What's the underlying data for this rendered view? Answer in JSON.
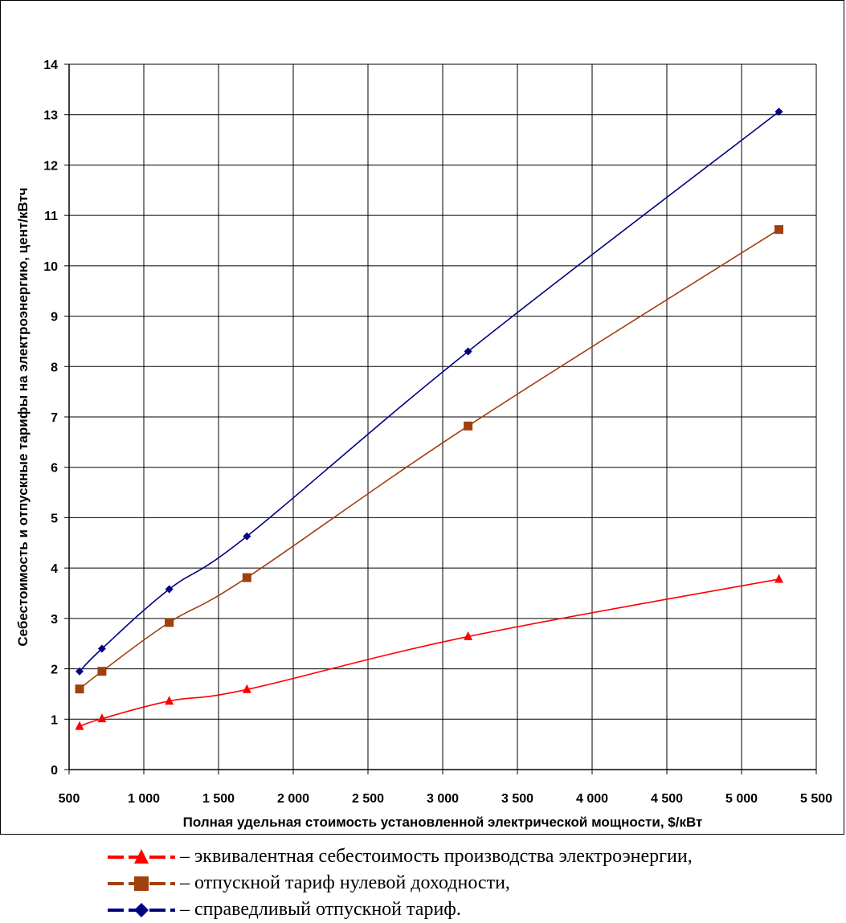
{
  "chart_data": {
    "type": "line",
    "xlabel": "Полная удельная стоимость установленной электрической мощности, $/кВт",
    "ylabel": "Себестоимость  и отпускные тарифы на электроэнергию, цент/кВтч",
    "xlim": [
      500,
      5500
    ],
    "ylim": [
      0,
      14
    ],
    "xticks": [
      "500",
      "1 000",
      "1 500",
      "2 000",
      "2 500",
      "3 000",
      "3 500",
      "4 000",
      "4 500",
      "5 000",
      "5 500"
    ],
    "yticks": [
      "0",
      "1",
      "2",
      "3",
      "4",
      "5",
      "6",
      "7",
      "8",
      "9",
      "10",
      "11",
      "12",
      "13",
      "14"
    ],
    "x": [
      570,
      720,
      1170,
      1690,
      3170,
      5250
    ],
    "grid": true,
    "legend_position": "bottom",
    "series": [
      {
        "name": "– эквивалентная себестоимость производства электроэнергии,",
        "color": "#ff0000",
        "marker": "triangle",
        "values": [
          0.86,
          1.01,
          1.36,
          1.59,
          2.64,
          3.78
        ]
      },
      {
        "name": "– отпускной тариф нулевой доходности,",
        "color": "#a0400c",
        "marker": "square",
        "values": [
          1.6,
          1.95,
          2.92,
          3.81,
          6.82,
          10.72
        ]
      },
      {
        "name": "– справедливый отпускной тариф.",
        "color": "#000080",
        "marker": "diamond",
        "values": [
          1.95,
          2.4,
          3.58,
          4.63,
          8.3,
          13.06
        ]
      }
    ]
  }
}
